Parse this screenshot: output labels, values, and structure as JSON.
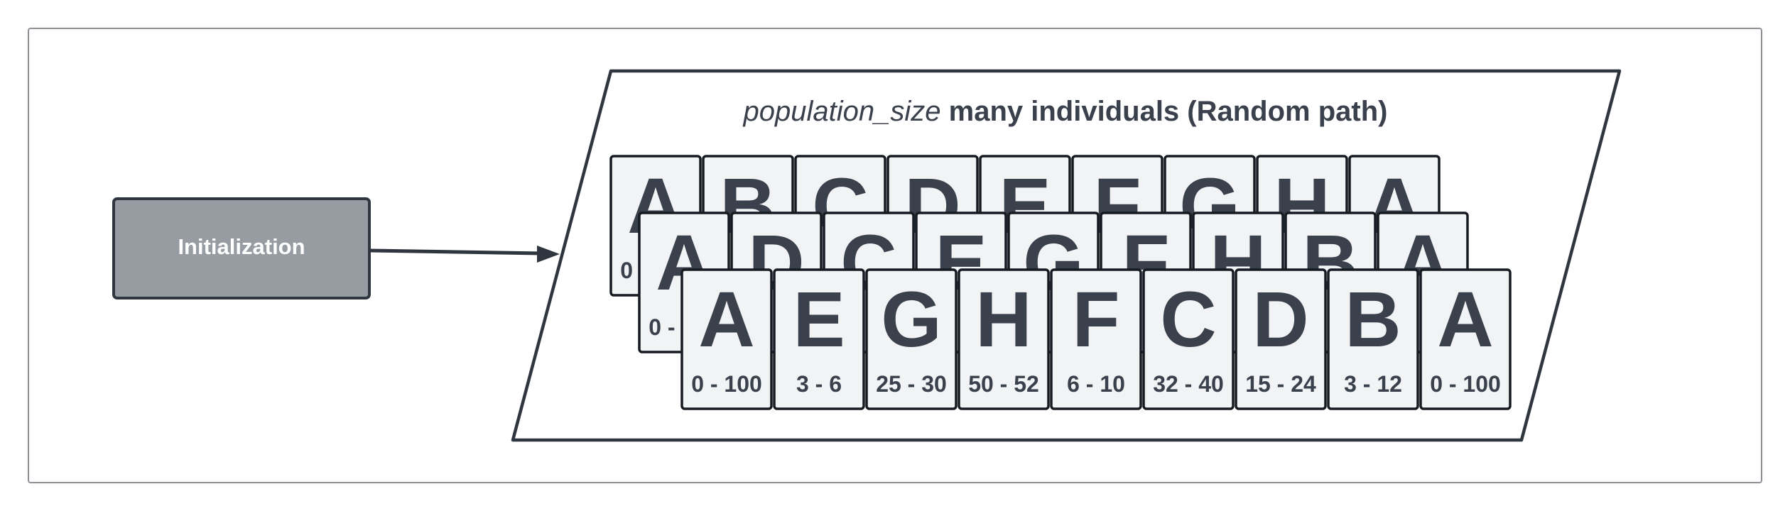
{
  "initialization": {
    "label": "Initialization"
  },
  "population": {
    "title_variable": "population_size",
    "title_rest": "many individuals (Random path)"
  },
  "individuals": [
    {
      "cards": [
        {
          "letter": "A",
          "range": "0 - 100"
        },
        {
          "letter": "B",
          "range": ""
        },
        {
          "letter": "C",
          "range": ""
        },
        {
          "letter": "D",
          "range": ""
        },
        {
          "letter": "E",
          "range": ""
        },
        {
          "letter": "F",
          "range": ""
        },
        {
          "letter": "G",
          "range": ""
        },
        {
          "letter": "H",
          "range": ""
        },
        {
          "letter": "A",
          "range": ""
        }
      ]
    },
    {
      "cards": [
        {
          "letter": "A",
          "range": "0 - 100"
        },
        {
          "letter": "D",
          "range": ""
        },
        {
          "letter": "C",
          "range": ""
        },
        {
          "letter": "E",
          "range": ""
        },
        {
          "letter": "G",
          "range": ""
        },
        {
          "letter": "F",
          "range": ""
        },
        {
          "letter": "H",
          "range": ""
        },
        {
          "letter": "B",
          "range": ""
        },
        {
          "letter": "A",
          "range": ""
        }
      ]
    },
    {
      "cards": [
        {
          "letter": "A",
          "range": "0 - 100"
        },
        {
          "letter": "E",
          "range": "3 - 6"
        },
        {
          "letter": "G",
          "range": "25 - 30"
        },
        {
          "letter": "H",
          "range": "50 - 52"
        },
        {
          "letter": "F",
          "range": "6 - 10"
        },
        {
          "letter": "C",
          "range": "32 - 40"
        },
        {
          "letter": "D",
          "range": "15 - 24"
        },
        {
          "letter": "B",
          "range": "3 - 12"
        },
        {
          "letter": "A",
          "range": "0 - 100"
        }
      ]
    }
  ]
}
